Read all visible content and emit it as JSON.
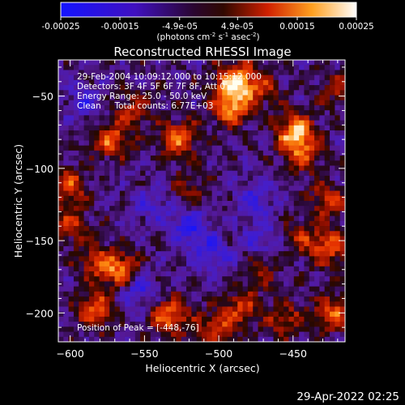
{
  "colorbar": {
    "tick_labels": [
      "-0.00025",
      "-0.00015",
      "-4.9e-05",
      "4.9e-05",
      "0.00015",
      "0.00025"
    ],
    "tick_values": [
      -0.00025,
      -0.00015,
      -4.9e-05,
      4.9e-05,
      0.00015,
      0.00025
    ],
    "range": [
      -0.00025,
      0.00025
    ],
    "units_prefix": "(photons cm",
    "units_exp1": "-2",
    "units_mid": " s",
    "units_exp2": "-1",
    "units_mid2": " asec",
    "units_exp3": "-2",
    "units_suffix": ")"
  },
  "chart_data": {
    "type": "heatmap",
    "title": "Reconstructed RHESSI Image",
    "xlabel": "Heliocentric X (arcsec)",
    "ylabel": "Heliocentric Y (arcsec)",
    "xlim": [
      -608,
      -415
    ],
    "ylim": [
      -220,
      -25
    ],
    "xticks": [
      -600,
      -550,
      -500,
      -450
    ],
    "yticks": [
      -200,
      -150,
      -100,
      -50
    ],
    "annotations": [
      "29-Feb-2004 10:09:12.000 to 10:15:12.000",
      "Detectors: 3F 4F 5F 6F 7F 8F, Att 0",
      "Energy Range: 25.0 - 50.0 keV",
      "Clean     Total counts: 6.77E+03"
    ],
    "peak_label": "Position of Peak = [-448,-76]",
    "peak_position": [
      -448,
      -76
    ],
    "hotspots": [
      {
        "x": -489,
        "y": -40,
        "v": 1.0
      },
      {
        "x": -492,
        "y": -58,
        "v": 0.8
      },
      {
        "x": -448,
        "y": -76,
        "v": 1.0
      },
      {
        "x": -443,
        "y": -92,
        "v": 0.5
      },
      {
        "x": -527,
        "y": -79,
        "v": 0.75
      },
      {
        "x": -573,
        "y": -80,
        "v": 0.7
      },
      {
        "x": -558,
        "y": -60,
        "v": 0.45
      },
      {
        "x": -600,
        "y": -112,
        "v": 0.6
      },
      {
        "x": -600,
        "y": -140,
        "v": 0.5
      },
      {
        "x": -582,
        "y": -165,
        "v": 0.5
      },
      {
        "x": -565,
        "y": -171,
        "v": 0.8
      },
      {
        "x": -583,
        "y": -198,
        "v": 0.7
      },
      {
        "x": -533,
        "y": -202,
        "v": 0.8
      },
      {
        "x": -502,
        "y": -212,
        "v": 0.6
      },
      {
        "x": -485,
        "y": -196,
        "v": 0.55
      },
      {
        "x": -455,
        "y": -205,
        "v": 0.5
      },
      {
        "x": -423,
        "y": -200,
        "v": 0.7
      },
      {
        "x": -426,
        "y": -155,
        "v": 0.7
      },
      {
        "x": -427,
        "y": -123,
        "v": 0.55
      },
      {
        "x": -446,
        "y": -148,
        "v": 0.4
      },
      {
        "x": -470,
        "y": -170,
        "v": 0.35
      },
      {
        "x": -520,
        "y": -115,
        "v": 0.35
      },
      {
        "x": -470,
        "y": -45,
        "v": 0.45
      },
      {
        "x": -420,
        "y": -45,
        "v": 0.4
      }
    ],
    "coldspots": [
      {
        "x": -520,
        "y": -140,
        "v": -0.55
      },
      {
        "x": -505,
        "y": -160,
        "v": -0.45
      },
      {
        "x": -555,
        "y": -183,
        "v": -0.6
      },
      {
        "x": -475,
        "y": -120,
        "v": -0.4
      },
      {
        "x": -545,
        "y": -125,
        "v": -0.35
      },
      {
        "x": -470,
        "y": -150,
        "v": -0.4
      },
      {
        "x": -590,
        "y": -55,
        "v": -0.35
      }
    ]
  },
  "footer": {
    "timestamp": "29-Apr-2022 02:25"
  }
}
